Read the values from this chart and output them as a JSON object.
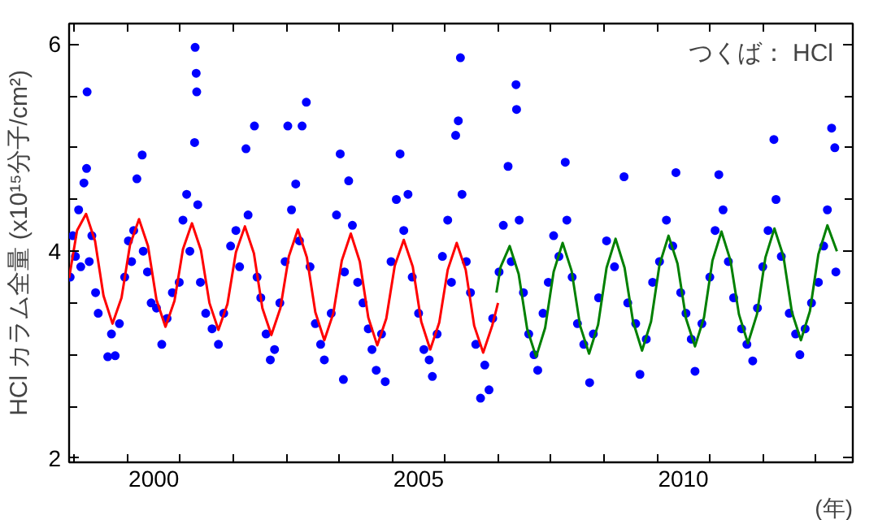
{
  "chart_data": {
    "type": "scatter",
    "ylabel": "HCl カラム全量 (x10¹⁵分子/cm²)",
    "xlabel": "(年)",
    "annotations": [
      "つくば： HCl"
    ],
    "xlim": [
      1998.9,
      2013.7
    ],
    "ylim": [
      1.96,
      6.2
    ],
    "xticks": [
      {
        "value": 1999,
        "label": null
      },
      {
        "value": 2000,
        "label": null
      },
      {
        "value": 2000.5,
        "label": "2000"
      },
      {
        "value": 2001,
        "label": null
      },
      {
        "value": 2002,
        "label": null
      },
      {
        "value": 2003,
        "label": null
      },
      {
        "value": 2004,
        "label": null
      },
      {
        "value": 2005,
        "label": null
      },
      {
        "value": 2005.5,
        "label": "2005"
      },
      {
        "value": 2006,
        "label": null
      },
      {
        "value": 2007,
        "label": null
      },
      {
        "value": 2008,
        "label": null
      },
      {
        "value": 2009,
        "label": null
      },
      {
        "value": 2010,
        "label": null
      },
      {
        "value": 2010.5,
        "label": "2010"
      },
      {
        "value": 2011,
        "label": null
      },
      {
        "value": 2012,
        "label": null
      },
      {
        "value": 2013,
        "label": null
      }
    ],
    "yticks": [
      2,
      {
        "value": 2.5,
        "label": null
      },
      {
        "value": 3,
        "label": null
      },
      {
        "value": 3.5,
        "label": null
      },
      4,
      {
        "value": 4.5,
        "label": null
      },
      {
        "value": 5,
        "label": null
      },
      {
        "value": 5.5,
        "label": null
      },
      6
    ],
    "grid": false,
    "series": [
      {
        "marker": "circle",
        "color": "#0000ff",
        "x": [
          1998.92,
          1998.97,
          1999.02,
          1999.08,
          1999.12,
          1999.18,
          1999.23,
          1999.24,
          1999.28,
          1999.33,
          1999.4,
          1999.45,
          1999.63,
          1999.77,
          1999.7,
          1999.85,
          1999.95,
          2000.02,
          2000.08,
          2000.12,
          2000.18,
          2000.28,
          2000.3,
          2000.38,
          2000.45,
          2000.55,
          2000.65,
          2000.75,
          2000.85,
          2000.98,
          2001.05,
          2001.12,
          2001.18,
          2001.27,
          2001.28,
          2001.3,
          2001.31,
          2001.33,
          2001.38,
          2001.48,
          2001.6,
          2001.72,
          2001.82,
          2001.95,
          2002.05,
          2002.12,
          2002.24,
          2002.28,
          2002.4,
          2002.45,
          2002.52,
          2002.62,
          2002.7,
          2002.78,
          2002.88,
          2002.98,
          2003.03,
          2003.1,
          2003.18,
          2003.25,
          2003.3,
          2003.38,
          2003.45,
          2003.55,
          2003.65,
          2003.72,
          2003.85,
          2003.95,
          2004.02,
          2004.1,
          2004.18,
          2004.25,
          2004.35,
          2004.45,
          2004.55,
          2004.62,
          2004.7,
          2004.8,
          2004.87,
          2004.08,
          2004.98,
          2005.08,
          2005.15,
          2005.22,
          2005.3,
          2005.38,
          2005.5,
          2005.6,
          2005.7,
          2005.76,
          2005.85,
          2005.95,
          2006.05,
          2006.12,
          2006.2,
          2006.25,
          2006.29,
          2006.32,
          2006.4,
          2006.48,
          2006.58,
          2006.67,
          2006.75,
          2006.83,
          2006.9,
          2007.02,
          2007.1,
          2007.19,
          2007.25,
          2007.34,
          2007.35,
          2007.4,
          2007.48,
          2007.58,
          2007.68,
          2007.75,
          2007.85,
          2007.95,
          2008.05,
          2008.15,
          2008.27,
          2008.3,
          2008.4,
          2008.5,
          2008.62,
          2008.73,
          2008.8,
          2008.9,
          2009.05,
          2009.2,
          2009.38,
          2009.45,
          2009.6,
          2009.68,
          2009.8,
          2009.92,
          2010.05,
          2010.18,
          2010.3,
          2010.36,
          2010.45,
          2010.55,
          2010.65,
          2010.72,
          2010.85,
          2011.0,
          2011.1,
          2011.17,
          2011.25,
          2011.35,
          2011.45,
          2011.6,
          2011.7,
          2011.81,
          2011.9,
          2012.0,
          2012.1,
          2012.21,
          2012.25,
          2012.35,
          2012.5,
          2012.62,
          2012.7,
          2012.8,
          2012.92,
          2013.05,
          2013.15,
          2013.22,
          2013.3,
          2013.36,
          2013.38
        ],
        "values": [
          3.75,
          4.15,
          3.95,
          4.4,
          3.85,
          4.66,
          4.8,
          5.54,
          3.9,
          4.15,
          3.6,
          3.4,
          2.98,
          2.99,
          3.2,
          3.3,
          3.75,
          4.1,
          3.9,
          4.2,
          4.7,
          4.93,
          4.0,
          3.8,
          3.5,
          3.45,
          3.1,
          3.35,
          3.6,
          3.7,
          4.3,
          4.55,
          4.0,
          5.05,
          5.97,
          5.72,
          5.54,
          4.45,
          3.7,
          3.4,
          3.25,
          3.1,
          3.4,
          4.05,
          4.2,
          3.85,
          4.99,
          4.35,
          5.21,
          3.75,
          3.55,
          3.2,
          2.95,
          3.05,
          3.5,
          3.9,
          5.21,
          4.4,
          4.65,
          4.1,
          5.21,
          5.44,
          3.85,
          3.3,
          3.1,
          2.95,
          3.4,
          4.35,
          4.94,
          3.8,
          4.68,
          4.25,
          3.7,
          3.5,
          3.25,
          3.05,
          2.85,
          3.2,
          2.74,
          2.76,
          3.9,
          4.5,
          4.94,
          4.2,
          4.55,
          3.75,
          3.4,
          3.05,
          2.95,
          2.79,
          3.2,
          3.95,
          4.3,
          3.7,
          5.12,
          5.26,
          5.87,
          4.55,
          3.9,
          3.6,
          3.1,
          2.58,
          2.9,
          2.66,
          3.35,
          3.8,
          4.25,
          4.82,
          3.9,
          5.61,
          5.37,
          4.3,
          3.6,
          3.2,
          3.0,
          2.85,
          3.4,
          3.7,
          4.15,
          3.95,
          4.86,
          4.3,
          3.75,
          3.3,
          3.1,
          2.73,
          3.2,
          3.55,
          4.1,
          3.85,
          4.72,
          3.5,
          3.3,
          2.81,
          3.15,
          3.7,
          3.9,
          4.3,
          4.05,
          4.76,
          3.6,
          3.4,
          3.15,
          2.84,
          3.3,
          3.75,
          4.2,
          4.74,
          4.4,
          3.9,
          3.55,
          3.25,
          3.1,
          2.94,
          3.45,
          3.85,
          4.2,
          5.08,
          4.5,
          3.95,
          3.4,
          3.2,
          3.0,
          3.25,
          3.5,
          3.7,
          4.05,
          4.4,
          5.19,
          5.0,
          3.8
        ]
      },
      {
        "type": "line",
        "color": "#ff0000",
        "x": [
          1998.9,
          1999.05,
          1999.22,
          1999.39,
          1999.55,
          1999.72,
          1999.89,
          2000.05,
          2000.22,
          2000.39,
          2000.55,
          2000.72,
          2000.89,
          2001.05,
          2001.22,
          2001.39,
          2001.55,
          2001.72,
          2001.89,
          2002.05,
          2002.22,
          2002.39,
          2002.55,
          2002.72,
          2002.89,
          2003.05,
          2003.22,
          2003.39,
          2003.55,
          2003.72,
          2003.89,
          2004.05,
          2004.22,
          2004.39,
          2004.55,
          2004.72,
          2004.89,
          2005.05,
          2005.22,
          2005.39,
          2005.55,
          2005.72,
          2005.89,
          2006.05,
          2006.22,
          2006.39,
          2006.55,
          2006.72,
          2006.89,
          2007.0
        ],
        "values": [
          3.74,
          4.2,
          4.36,
          4.1,
          3.57,
          3.3,
          3.55,
          4.06,
          4.31,
          4.05,
          3.53,
          3.27,
          3.52,
          4.02,
          4.27,
          4.01,
          3.5,
          3.24,
          3.49,
          3.99,
          4.24,
          3.98,
          3.45,
          3.19,
          3.45,
          3.95,
          4.21,
          3.94,
          3.41,
          3.14,
          3.4,
          3.91,
          4.17,
          3.9,
          3.36,
          3.09,
          3.35,
          3.86,
          4.11,
          3.85,
          3.32,
          3.05,
          3.31,
          3.82,
          4.08,
          3.82,
          3.28,
          3.02,
          3.28,
          3.5
        ]
      },
      {
        "type": "line",
        "color": "#008000",
        "x": [
          2006.97,
          2007.05,
          2007.22,
          2007.39,
          2007.55,
          2007.72,
          2007.89,
          2008.05,
          2008.22,
          2008.39,
          2008.55,
          2008.72,
          2008.89,
          2009.05,
          2009.22,
          2009.39,
          2009.55,
          2009.72,
          2009.89,
          2010.05,
          2010.22,
          2010.39,
          2010.55,
          2010.72,
          2010.89,
          2011.05,
          2011.22,
          2011.39,
          2011.55,
          2011.72,
          2011.89,
          2012.05,
          2012.22,
          2012.39,
          2012.55,
          2012.72,
          2012.89,
          2013.05,
          2013.22,
          2013.4
        ],
        "values": [
          3.6,
          3.85,
          4.05,
          3.78,
          3.25,
          2.98,
          3.26,
          3.8,
          4.08,
          3.81,
          3.28,
          3.01,
          3.29,
          3.84,
          4.12,
          3.84,
          3.32,
          3.04,
          3.32,
          3.87,
          4.15,
          3.88,
          3.35,
          3.08,
          3.36,
          3.91,
          4.19,
          3.91,
          3.39,
          3.11,
          3.39,
          3.94,
          4.22,
          3.95,
          3.41,
          3.14,
          3.42,
          3.97,
          4.25,
          4.0
        ]
      }
    ]
  }
}
